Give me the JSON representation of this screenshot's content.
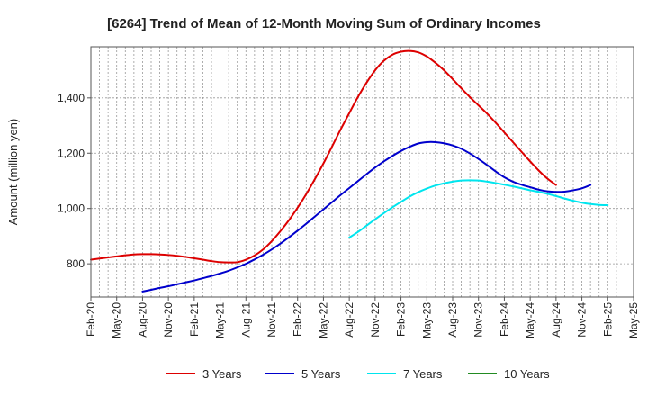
{
  "chart_data": {
    "type": "line",
    "title": "[6264]  Trend of Mean of 12-Month Moving Sum of Ordinary Incomes",
    "xlabel": "",
    "ylabel": "Amount (million yen)",
    "x_tick_labels": [
      "Feb-20",
      "May-20",
      "Aug-20",
      "Nov-20",
      "Feb-21",
      "May-21",
      "Aug-21",
      "Nov-21",
      "Feb-22",
      "May-22",
      "Aug-22",
      "Nov-22",
      "Feb-23",
      "May-23",
      "Aug-23",
      "Nov-23",
      "Feb-24",
      "May-24",
      "Aug-24",
      "Nov-24",
      "Feb-25",
      "May-25"
    ],
    "y_ticks": [
      800,
      1000,
      1200,
      1400
    ],
    "y_tick_labels": [
      "800",
      "1,000",
      "1,200",
      "1,400"
    ],
    "ylim": [
      680,
      1585
    ],
    "grid": true,
    "legend_position": "bottom",
    "series": [
      {
        "name": "3 Years",
        "color": "#dd0000",
        "start_index": 0,
        "values": [
          815,
          819,
          823,
          827,
          831,
          834,
          835,
          835,
          834,
          832,
          829,
          825,
          820,
          815,
          810,
          806,
          805,
          806,
          815,
          830,
          852,
          882,
          918,
          958,
          1003,
          1052,
          1106,
          1163,
          1224,
          1286,
          1345,
          1403,
          1455,
          1500,
          1534,
          1556,
          1567,
          1570,
          1565,
          1550,
          1527,
          1500,
          1468,
          1435,
          1403,
          1373,
          1343,
          1310,
          1275,
          1240,
          1205,
          1170,
          1137,
          1108,
          1085
        ]
      },
      {
        "name": "5 Years",
        "color": "#0000cc",
        "start_index": 6,
        "values": [
          700,
          706,
          713,
          719,
          726,
          733,
          740,
          748,
          756,
          765,
          775,
          787,
          800,
          816,
          833,
          852,
          873,
          896,
          920,
          945,
          971,
          997,
          1023,
          1049,
          1074,
          1099,
          1124,
          1148,
          1170,
          1190,
          1208,
          1223,
          1235,
          1240,
          1240,
          1236,
          1228,
          1216,
          1199,
          1179,
          1157,
          1134,
          1113,
          1097,
          1086,
          1077,
          1068,
          1062,
          1060,
          1061,
          1066,
          1073,
          1085
        ]
      },
      {
        "name": "7 Years",
        "color": "#00e5ee",
        "start_index": 30,
        "values": [
          895,
          915,
          938,
          961,
          983,
          1004,
          1024,
          1043,
          1059,
          1072,
          1083,
          1091,
          1097,
          1101,
          1102,
          1101,
          1097,
          1092,
          1086,
          1080,
          1073,
          1066,
          1060,
          1053,
          1045,
          1036,
          1028,
          1021,
          1016,
          1013,
          1012
        ]
      },
      {
        "name": "10 Years",
        "color": "#228b22",
        "start_index": 0,
        "values": []
      }
    ]
  }
}
